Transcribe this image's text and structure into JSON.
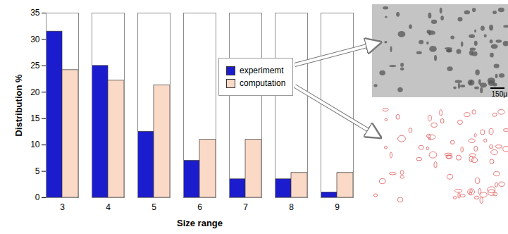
{
  "chart_data": {
    "type": "bar",
    "x_label": "Size range",
    "y_label": "Distribution %",
    "categories": [
      3,
      4,
      5,
      6,
      7,
      8,
      9
    ],
    "series": [
      {
        "name": "experimemt",
        "color": "#1c1ccf",
        "values": [
          31.5,
          25,
          12.5,
          7,
          3.5,
          3.5,
          1
        ]
      },
      {
        "name": "computation",
        "color": "#fad9c6",
        "values": [
          24.2,
          22.2,
          21.3,
          11,
          11,
          4.7,
          4.7
        ]
      }
    ],
    "ylim": [
      0,
      35
    ],
    "yticks": [
      0,
      5,
      10,
      15,
      20,
      25,
      30,
      35
    ],
    "grid": false,
    "legend": "right",
    "annotations": [
      "150μ"
    ]
  }
}
